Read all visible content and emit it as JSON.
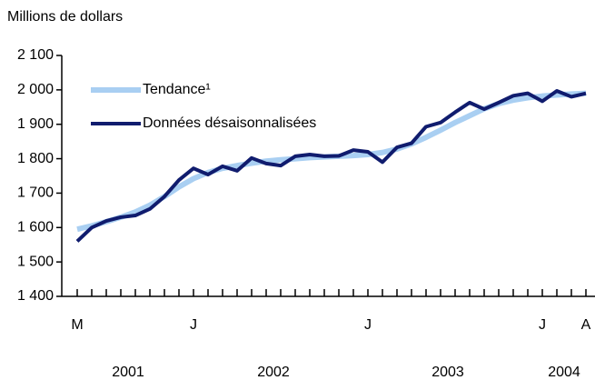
{
  "chart_data": {
    "type": "line",
    "y_axis_label": "Millions de dollars",
    "categories": [
      "M",
      null,
      null,
      null,
      null,
      null,
      null,
      null,
      "J",
      null,
      null,
      null,
      null,
      null,
      null,
      null,
      null,
      null,
      null,
      null,
      "J",
      null,
      null,
      null,
      null,
      null,
      null,
      null,
      null,
      null,
      null,
      null,
      "J",
      null,
      null,
      "A"
    ],
    "years": [
      "2001",
      "2002",
      "2003",
      "2004"
    ],
    "series": [
      {
        "name": "Tendance¹",
        "color": "#a9cff2",
        "values": [
          1595,
          1605,
          1617,
          1630,
          1645,
          1665,
          1690,
          1718,
          1742,
          1760,
          1772,
          1780,
          1787,
          1793,
          1797,
          1800,
          1803,
          1805,
          1807,
          1809,
          1812,
          1818,
          1828,
          1843,
          1862,
          1883,
          1905,
          1925,
          1945,
          1960,
          1970,
          1977,
          1982,
          1985,
          1988,
          1990
        ]
      },
      {
        "name": "Données désaisonnalisées",
        "color": "#101c6e",
        "values": [
          1560,
          1600,
          1619,
          1630,
          1635,
          1654,
          1690,
          1738,
          1772,
          1754,
          1778,
          1765,
          1802,
          1786,
          1780,
          1807,
          1812,
          1807,
          1808,
          1825,
          1820,
          1790,
          1833,
          1845,
          1893,
          1905,
          1935,
          1963,
          1944,
          1963,
          1983,
          1990,
          1967,
          1997,
          1980,
          1990
        ]
      }
    ],
    "ylim": [
      1400,
      2100
    ],
    "yticks": [
      {
        "value": 1400,
        "label": "1 400"
      },
      {
        "value": 1500,
        "label": "1 500"
      },
      {
        "value": 1600,
        "label": "1 600"
      },
      {
        "value": 1700,
        "label": "1 700"
      },
      {
        "value": 1800,
        "label": "1 800"
      },
      {
        "value": 1900,
        "label": "1 900"
      },
      {
        "value": 2000,
        "label": "2 000"
      },
      {
        "value": 2100,
        "label": "2 100"
      }
    ],
    "legend": "upper left"
  }
}
